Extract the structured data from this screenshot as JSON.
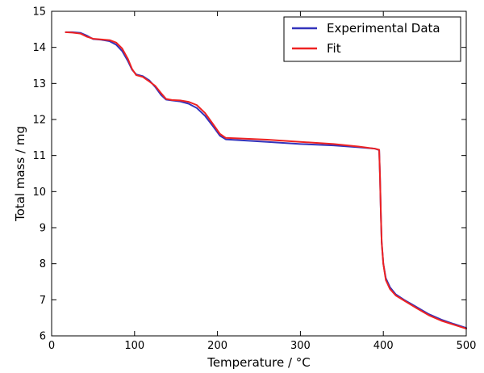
{
  "chart_data": {
    "type": "line",
    "xlabel": "Temperature / °C",
    "ylabel": "Total mass / mg",
    "xlim": [
      0,
      500
    ],
    "ylim": [
      6,
      15
    ],
    "xticks": [
      0,
      100,
      200,
      300,
      400,
      500
    ],
    "yticks": [
      6,
      7,
      8,
      9,
      10,
      11,
      12,
      13,
      14,
      15
    ],
    "grid": false,
    "legend_position": "top-right",
    "series": [
      {
        "name": "Experimental Data",
        "color": "#3333bb",
        "points": [
          [
            17,
            14.42
          ],
          [
            25,
            14.42
          ],
          [
            35,
            14.4
          ],
          [
            42,
            14.33
          ],
          [
            50,
            14.23
          ],
          [
            60,
            14.21
          ],
          [
            70,
            14.17
          ],
          [
            78,
            14.07
          ],
          [
            85,
            13.9
          ],
          [
            92,
            13.62
          ],
          [
            97,
            13.38
          ],
          [
            102,
            13.25
          ],
          [
            110,
            13.2
          ],
          [
            118,
            13.08
          ],
          [
            125,
            12.9
          ],
          [
            132,
            12.68
          ],
          [
            138,
            12.55
          ],
          [
            145,
            12.53
          ],
          [
            155,
            12.5
          ],
          [
            165,
            12.44
          ],
          [
            175,
            12.32
          ],
          [
            185,
            12.1
          ],
          [
            195,
            11.8
          ],
          [
            203,
            11.55
          ],
          [
            210,
            11.45
          ],
          [
            230,
            11.42
          ],
          [
            260,
            11.38
          ],
          [
            300,
            11.32
          ],
          [
            340,
            11.28
          ],
          [
            370,
            11.23
          ],
          [
            390,
            11.19
          ],
          [
            395,
            11.15
          ],
          [
            396,
            10.4
          ],
          [
            397,
            9.4
          ],
          [
            398,
            8.6
          ],
          [
            400,
            8.0
          ],
          [
            403,
            7.6
          ],
          [
            408,
            7.35
          ],
          [
            415,
            7.15
          ],
          [
            425,
            7.0
          ],
          [
            440,
            6.8
          ],
          [
            455,
            6.6
          ],
          [
            470,
            6.45
          ],
          [
            485,
            6.33
          ],
          [
            500,
            6.22
          ]
        ]
      },
      {
        "name": "Fit",
        "color": "#ee2222",
        "points": [
          [
            17,
            14.42
          ],
          [
            25,
            14.41
          ],
          [
            35,
            14.38
          ],
          [
            42,
            14.3
          ],
          [
            50,
            14.24
          ],
          [
            60,
            14.22
          ],
          [
            70,
            14.2
          ],
          [
            78,
            14.13
          ],
          [
            85,
            13.97
          ],
          [
            92,
            13.68
          ],
          [
            97,
            13.4
          ],
          [
            102,
            13.23
          ],
          [
            110,
            13.18
          ],
          [
            118,
            13.05
          ],
          [
            125,
            12.93
          ],
          [
            132,
            12.73
          ],
          [
            138,
            12.57
          ],
          [
            145,
            12.54
          ],
          [
            155,
            12.53
          ],
          [
            165,
            12.49
          ],
          [
            175,
            12.4
          ],
          [
            185,
            12.18
          ],
          [
            195,
            11.86
          ],
          [
            203,
            11.6
          ],
          [
            210,
            11.49
          ],
          [
            230,
            11.47
          ],
          [
            260,
            11.44
          ],
          [
            300,
            11.38
          ],
          [
            340,
            11.32
          ],
          [
            370,
            11.25
          ],
          [
            390,
            11.19
          ],
          [
            395,
            11.16
          ],
          [
            396,
            10.4
          ],
          [
            397,
            9.4
          ],
          [
            398,
            8.6
          ],
          [
            400,
            8.0
          ],
          [
            403,
            7.55
          ],
          [
            408,
            7.3
          ],
          [
            415,
            7.12
          ],
          [
            425,
            6.98
          ],
          [
            440,
            6.77
          ],
          [
            455,
            6.57
          ],
          [
            470,
            6.42
          ],
          [
            485,
            6.31
          ],
          [
            500,
            6.2
          ]
        ]
      }
    ]
  }
}
